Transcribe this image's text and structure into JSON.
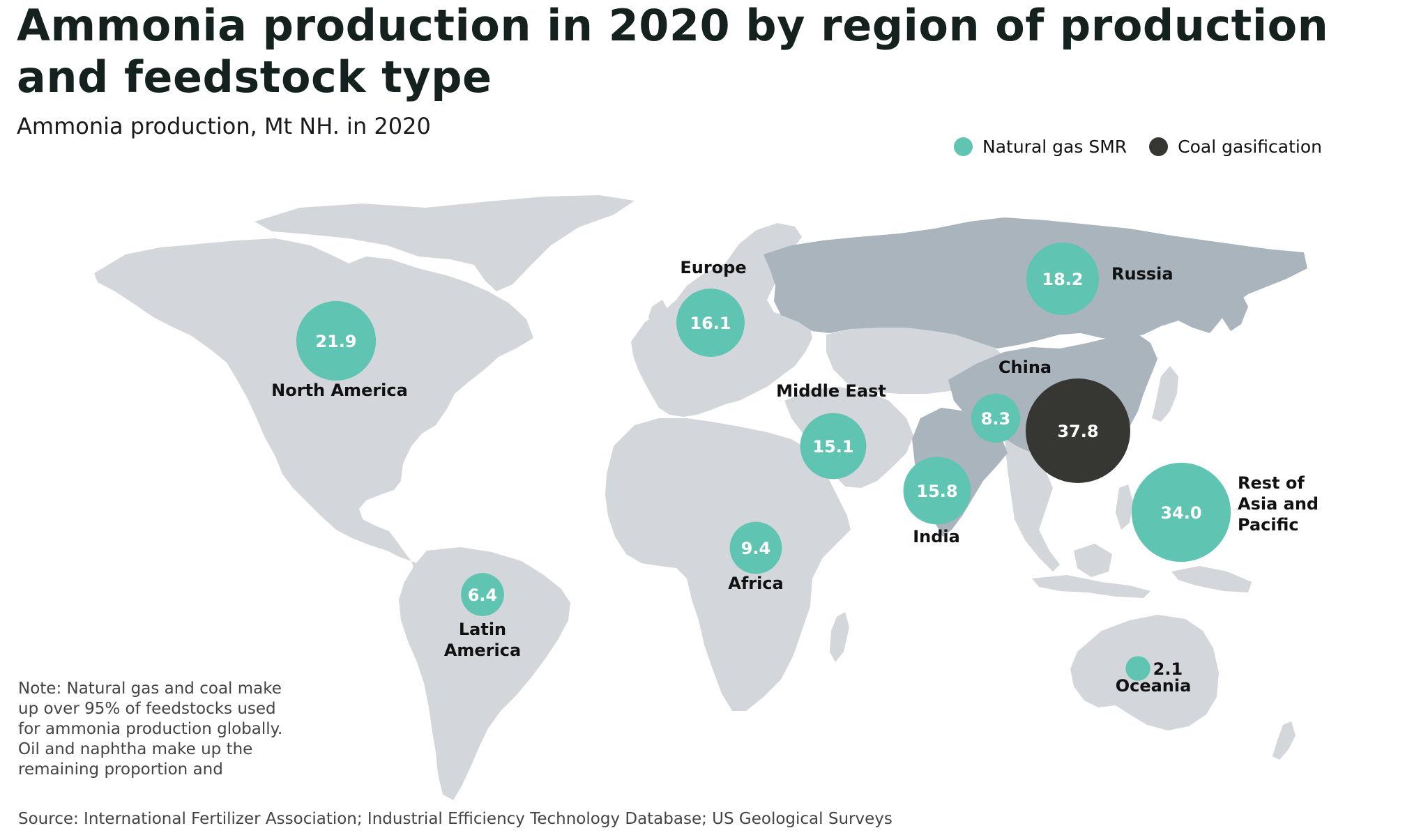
{
  "title": "Ammonia production in 2020 by region of production and feedstock type",
  "subtitle": "Ammonia production, Mt NH. in 2020",
  "legend": [
    {
      "label": "Natural gas SMR",
      "color": "#5fc4b1"
    },
    {
      "label": "Coal gasification",
      "color": "#363733"
    }
  ],
  "colors": {
    "land": "#d3d6db",
    "highlight_land": "#a9b4bd",
    "gas": "#5fc4b1",
    "coal": "#363733",
    "bubble_text": "#ffffff",
    "label_text": "#111111"
  },
  "regions": [
    {
      "id": "north-america",
      "name": "North America",
      "value": 21.9,
      "feedstock": "Natural gas SMR"
    },
    {
      "id": "europe",
      "name": "Europe",
      "value": 16.1,
      "feedstock": "Natural gas SMR"
    },
    {
      "id": "russia",
      "name": "Russia",
      "value": 18.2,
      "feedstock": "Natural gas SMR"
    },
    {
      "id": "middle-east",
      "name": "Middle East",
      "value": 15.1,
      "feedstock": "Natural gas SMR"
    },
    {
      "id": "china-gas",
      "name": "China",
      "value": 8.3,
      "feedstock": "Natural gas SMR"
    },
    {
      "id": "china-coal",
      "name": "",
      "value": 37.8,
      "feedstock": "Coal gasification"
    },
    {
      "id": "india",
      "name": "India",
      "value": 15.8,
      "feedstock": "Natural gas SMR"
    },
    {
      "id": "rest-of-asia",
      "name": "Rest of\nAsia and\nPacific",
      "value": 34.0,
      "feedstock": "Natural gas SMR"
    },
    {
      "id": "africa",
      "name": "Africa",
      "value": 9.4,
      "feedstock": "Natural gas SMR"
    },
    {
      "id": "latin-america",
      "name": "Latin\nAmerica",
      "value": 6.4,
      "feedstock": "Natural gas SMR"
    },
    {
      "id": "oceania",
      "name": "Oceania",
      "value": 2.1,
      "feedstock": "Natural gas SMR"
    }
  ],
  "note": "Note: Natural gas and coal make up over 95% of feedstocks used for ammonia production globally. Oil and naphtha make up the remaining proportion and",
  "source": "Source: International Fertilizer Association; Industrial Efficiency Technology Database; US Geological Surveys"
}
